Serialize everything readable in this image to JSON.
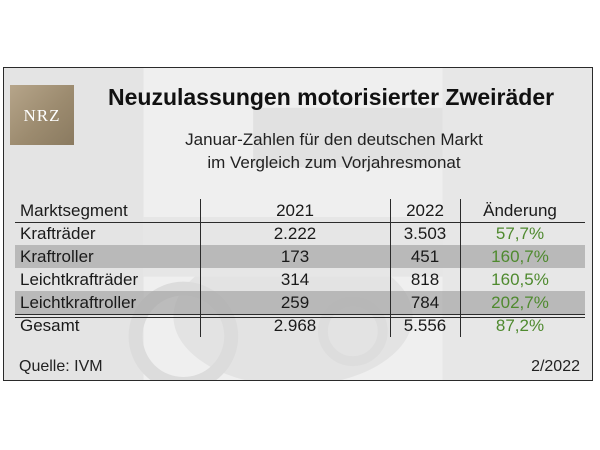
{
  "logo_text": "NRZ",
  "title": "Neuzulassungen motorisierter Zweiräder",
  "subtitle_line1": "Januar-Zahlen für den deutschen Markt",
  "subtitle_line2": "im Vergleich zum Vorjahresmonat",
  "source": "Quelle: IVM",
  "date": "2/2022",
  "colors": {
    "change_text": "#4f8a2f",
    "shaded_row": "#a8a8a8",
    "logo_bg": "#9c8b6f"
  },
  "chart_data": {
    "type": "table",
    "columns": [
      "Marktsegment",
      "2021",
      "2022",
      "Änderung"
    ],
    "rows": [
      {
        "segment": "Krafträder",
        "y2021": "2.222",
        "y2022": "3.503",
        "change": "57,7%",
        "shaded": false
      },
      {
        "segment": "Kraftroller",
        "y2021": "173",
        "y2022": "451",
        "change": "160,7%",
        "shaded": true
      },
      {
        "segment": "Leichtkrafträder",
        "y2021": "314",
        "y2022": "818",
        "change": "160,5%",
        "shaded": false
      },
      {
        "segment": "Leichtkraftroller",
        "y2021": "259",
        "y2022": "784",
        "change": "202,7%",
        "shaded": true
      }
    ],
    "total": {
      "segment": "Gesamt",
      "y2021": "2.968",
      "y2022": "5.556",
      "change": "87,2%"
    }
  }
}
